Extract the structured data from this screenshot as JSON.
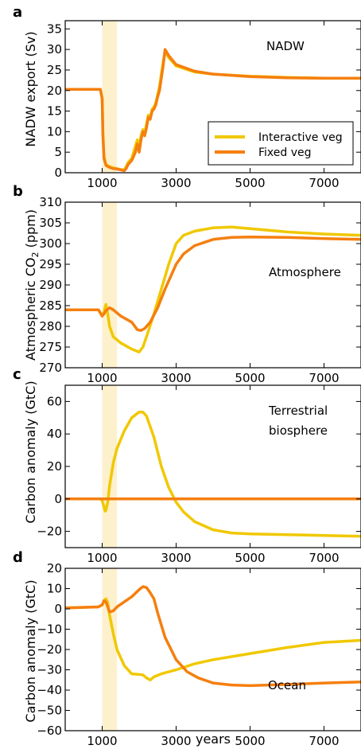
{
  "colors": {
    "interactive": "#f0c800",
    "fixed": "#f57f0f",
    "shade": "#fdf0cc"
  },
  "xlabel": "years",
  "legend": [
    {
      "label": "Interactive veg",
      "color": "#f0c800"
    },
    {
      "label": "Fixed veg",
      "color": "#f57f0f"
    }
  ],
  "chart_data": [
    {
      "type": "line",
      "panel": "a",
      "annotations": [
        "NADW"
      ],
      "ylabel": "NADW export (Sv)",
      "xlim": [
        0,
        8000
      ],
      "ylim": [
        0,
        37
      ],
      "xticks": [
        1000,
        3000,
        5000,
        7000
      ],
      "yticks": [
        0,
        5,
        10,
        15,
        20,
        25,
        30,
        35
      ],
      "shade": [
        1000,
        1400
      ],
      "legend_position": "center-right",
      "series": [
        {
          "name": "Interactive veg",
          "x": [
            0,
            950,
            1000,
            1020,
            1050,
            1100,
            1200,
            1300,
            1400,
            1500,
            1600,
            1650,
            1700,
            1800,
            1850,
            1900,
            1950,
            2000,
            2050,
            2100,
            2150,
            2200,
            2250,
            2300,
            2350,
            2400,
            2450,
            2500,
            2550,
            2600,
            2650,
            2700,
            2800,
            3000,
            3500,
            4000,
            5000,
            6000,
            7000,
            8000
          ],
          "y": [
            20.3,
            20.3,
            18,
            10,
            4,
            2,
            1.5,
            1.2,
            1,
            0.8,
            0.7,
            1.5,
            2.5,
            3.5,
            5,
            6.5,
            8,
            6,
            9,
            10.5,
            9.5,
            12,
            14,
            13.5,
            15.5,
            16,
            17,
            19,
            21,
            24,
            27,
            29.5,
            28,
            26,
            24.5,
            24,
            23.5,
            23.2,
            23,
            23
          ]
        },
        {
          "name": "Fixed veg",
          "x": [
            0,
            950,
            1000,
            1020,
            1050,
            1100,
            1200,
            1300,
            1400,
            1500,
            1600,
            1650,
            1700,
            1800,
            1850,
            1900,
            1950,
            2000,
            2050,
            2100,
            2150,
            2200,
            2250,
            2300,
            2350,
            2400,
            2450,
            2500,
            2550,
            2600,
            2650,
            2700,
            2800,
            3000,
            3500,
            4000,
            5000,
            6000,
            7000,
            8000
          ],
          "y": [
            20.3,
            20.3,
            18,
            9,
            3.5,
            1.8,
            1.3,
            1,
            0.9,
            0.7,
            0.5,
            1,
            2,
            3,
            4,
            5,
            7,
            5,
            8,
            10,
            9,
            11,
            13.5,
            13,
            15,
            15.5,
            16.5,
            18.5,
            20,
            23,
            26,
            30,
            28.5,
            26.3,
            24.7,
            24,
            23.4,
            23.1,
            23,
            23
          ]
        }
      ]
    },
    {
      "type": "line",
      "panel": "b",
      "annotations": [
        "Atmosphere"
      ],
      "ylabel_main": "Atmospheric CO",
      "ylabel_sub": "2",
      "ylabel_tail": " (ppm)",
      "xlim": [
        0,
        8000
      ],
      "ylim": [
        270,
        310
      ],
      "xticks": [
        1000,
        3000,
        5000,
        7000
      ],
      "yticks": [
        270,
        275,
        280,
        285,
        290,
        295,
        300,
        305,
        310
      ],
      "shade": [
        1000,
        1400
      ],
      "series": [
        {
          "name": "Interactive veg",
          "x": [
            0,
            900,
            1000,
            1050,
            1100,
            1150,
            1200,
            1300,
            1500,
            1800,
            2000,
            2100,
            2200,
            2400,
            2600,
            2800,
            3000,
            3200,
            3500,
            4000,
            4500,
            5000,
            6000,
            7000,
            8000
          ],
          "y": [
            284,
            284,
            282.5,
            283.5,
            285.3,
            283,
            280,
            277.5,
            276,
            274.5,
            273.8,
            275,
            277.5,
            283,
            289,
            295,
            300,
            302,
            303,
            303.8,
            304,
            303.6,
            302.8,
            302.3,
            302
          ]
        },
        {
          "name": "Fixed veg",
          "x": [
            0,
            900,
            1000,
            1050,
            1100,
            1200,
            1300,
            1500,
            1800,
            1950,
            2050,
            2150,
            2300,
            2500,
            2700,
            3000,
            3200,
            3500,
            4000,
            4500,
            5000,
            6000,
            7000,
            8000
          ],
          "y": [
            284,
            284,
            282.5,
            283,
            283.8,
            284.5,
            284,
            282.5,
            281,
            279.2,
            279,
            279.5,
            281,
            284.5,
            289,
            295,
            297.5,
            299.5,
            301,
            301.5,
            301.6,
            301.5,
            301.2,
            301
          ]
        }
      ]
    },
    {
      "type": "line",
      "panel": "c",
      "annotations": [
        "Terrestrial",
        "biosphere"
      ],
      "ylabel": "Carbon anomaly (GtC)",
      "xlim": [
        0,
        8000
      ],
      "ylim": [
        -30,
        70
      ],
      "xticks": [
        1000,
        3000,
        5000,
        7000
      ],
      "yticks": [
        -20,
        0,
        20,
        40,
        60
      ],
      "shade": [
        1000,
        1400
      ],
      "series": [
        {
          "name": "Interactive veg",
          "x": [
            0,
            950,
            1000,
            1050,
            1080,
            1100,
            1150,
            1200,
            1300,
            1400,
            1600,
            1800,
            2000,
            2100,
            2200,
            2400,
            2600,
            2800,
            3000,
            3200,
            3500,
            4000,
            4500,
            5000,
            6000,
            7000,
            8000
          ],
          "y": [
            0,
            0,
            -1,
            -5,
            -7.5,
            -7,
            -2,
            8,
            22,
            31,
            42,
            50,
            53.5,
            53.5,
            51,
            38,
            20,
            7,
            -2,
            -8,
            -14,
            -19,
            -21,
            -21.5,
            -22,
            -22.5,
            -23
          ]
        },
        {
          "name": "Fixed veg",
          "x": [
            0,
            8000
          ],
          "y": [
            0,
            0
          ]
        }
      ]
    },
    {
      "type": "line",
      "panel": "d",
      "annotations": [
        "Ocean"
      ],
      "ylabel": "Carbon anomaly (GtC)",
      "xlim": [
        0,
        8000
      ],
      "ylim": [
        -60,
        20
      ],
      "xticks": [
        1000,
        3000,
        5000,
        7000
      ],
      "yticks": [
        -60,
        -50,
        -40,
        -30,
        -20,
        -10,
        0,
        10,
        20
      ],
      "shade": [
        1000,
        1400
      ],
      "series": [
        {
          "name": "Interactive veg",
          "x": [
            0,
            900,
            1000,
            1050,
            1100,
            1150,
            1200,
            1300,
            1400,
            1600,
            1800,
            2000,
            2100,
            2200,
            2300,
            2400,
            2600,
            2800,
            3000,
            3500,
            4000,
            5000,
            6000,
            7000,
            8000
          ],
          "y": [
            0.5,
            1,
            2,
            4,
            5,
            3,
            -3,
            -12,
            -20,
            -28,
            -32,
            -32.3,
            -32.5,
            -34,
            -35,
            -33.5,
            -32,
            -31,
            -30,
            -27,
            -25,
            -22,
            -19,
            -16.5,
            -15.5
          ]
        },
        {
          "name": "Fixed veg",
          "x": [
            0,
            900,
            1000,
            1050,
            1100,
            1150,
            1200,
            1300,
            1400,
            1600,
            1800,
            2000,
            2100,
            2200,
            2300,
            2400,
            2500,
            2700,
            3000,
            3300,
            3600,
            4000,
            4500,
            5000,
            6000,
            7000,
            8000
          ],
          "y": [
            0.5,
            1,
            2,
            4,
            3.5,
            1,
            -1.5,
            -1,
            1,
            3.5,
            6,
            9.5,
            11,
            10.5,
            8,
            5,
            -2,
            -14,
            -25,
            -31,
            -34,
            -36.5,
            -37.5,
            -37.8,
            -37.2,
            -36.5,
            -36
          ]
        }
      ]
    }
  ]
}
